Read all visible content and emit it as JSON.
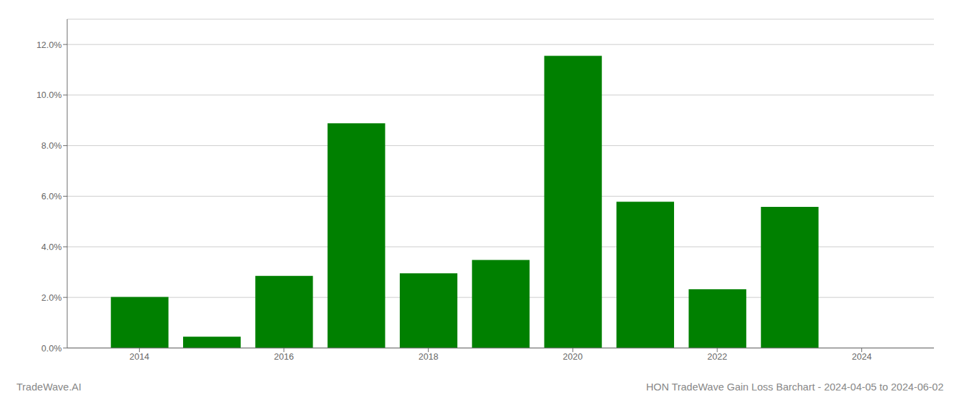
{
  "chart_data": {
    "type": "bar",
    "title": "HON TradeWave Gain Loss Barchart - 2024-04-05 to 2024-06-02",
    "annotations": [
      "TradeWave.AI"
    ],
    "x": [
      2014,
      2015,
      2016,
      2017,
      2018,
      2019,
      2020,
      2021,
      2022,
      2023
    ],
    "values": [
      0.0202,
      0.0045,
      0.0285,
      0.0888,
      0.0295,
      0.0348,
      0.1155,
      0.0578,
      0.0232,
      0.0558
    ],
    "color": "#008000",
    "xlim": [
      2013,
      2025
    ],
    "xticks": [
      2014,
      2016,
      2018,
      2020,
      2022,
      2024
    ],
    "ylim": [
      0,
      0.13
    ],
    "yticks": [
      {
        "value": 0.0,
        "label": "0.0%"
      },
      {
        "value": 0.02,
        "label": "2.0%"
      },
      {
        "value": 0.04,
        "label": "4.0%"
      },
      {
        "value": 0.06,
        "label": "6.0%"
      },
      {
        "value": 0.08,
        "label": "8.0%"
      },
      {
        "value": 0.1,
        "label": "10.0%"
      },
      {
        "value": 0.12,
        "label": "12.0%"
      }
    ],
    "grid": true
  }
}
